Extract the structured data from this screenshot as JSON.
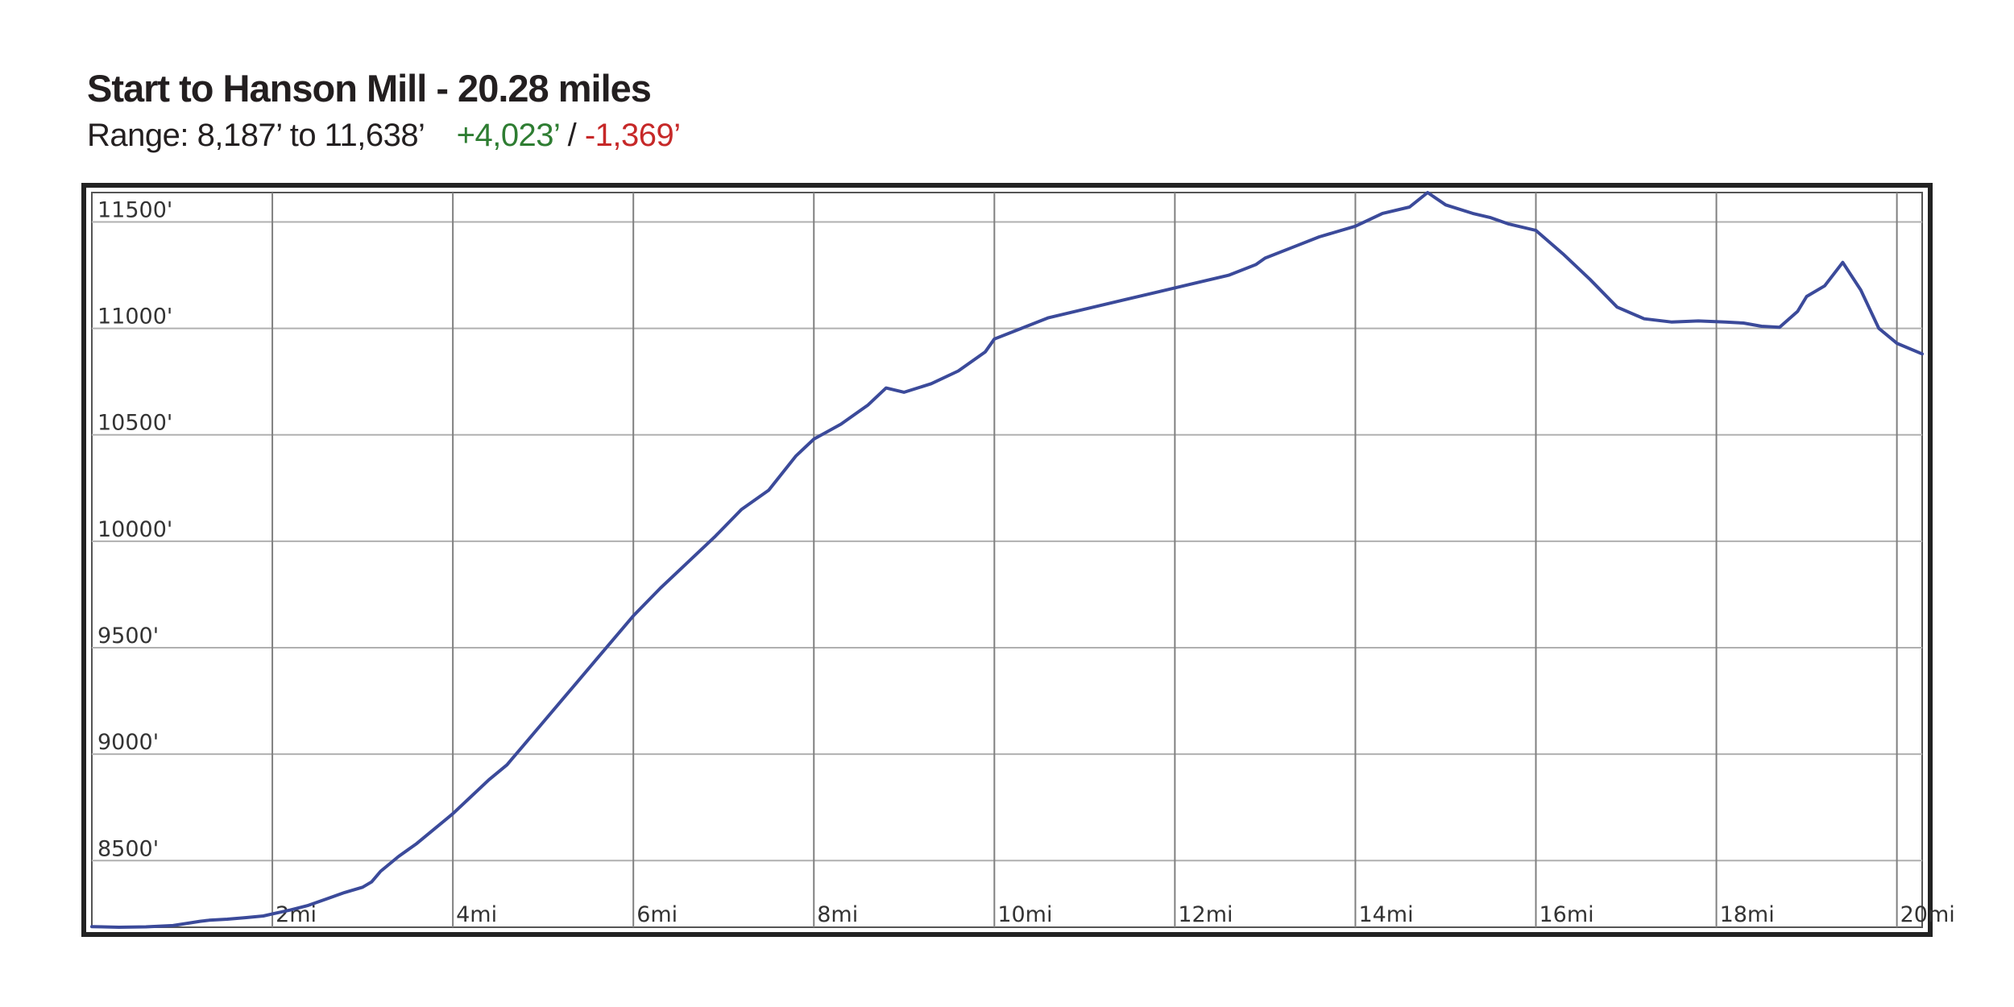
{
  "header": {
    "title": "Start to Hanson Mill - 20.28 miles",
    "range_label": "Range: 8,187’ to 11,638’",
    "gain": "+4,023’",
    "separator": "/",
    "loss": "-1,369’"
  },
  "colors": {
    "line": "#3b4a9a",
    "gain": "#2e7d32",
    "loss": "#c62828",
    "grid": "#b0b0b0",
    "frame": "#222222"
  },
  "chart_data": {
    "type": "line",
    "title": "Start to Hanson Mill - 20.28 miles",
    "xlabel": "",
    "ylabel": "",
    "xlim": [
      0,
      20.28
    ],
    "ylim": [
      8187,
      11638
    ],
    "grid": true,
    "x_ticks": [
      2,
      4,
      6,
      8,
      10,
      12,
      14,
      16,
      18,
      20
    ],
    "x_tick_labels": [
      "2mi",
      "4mi",
      "6mi",
      "8mi",
      "10mi",
      "12mi",
      "14mi",
      "16mi",
      "18mi",
      "20mi"
    ],
    "y_ticks": [
      11500,
      11000,
      10500,
      10000,
      9500,
      9000,
      8500
    ],
    "y_tick_labels": [
      "11500'",
      "11000'",
      "10500'",
      "10000'",
      "9500'",
      "9000'",
      "8500'"
    ],
    "series": [
      {
        "x": [
          0,
          0.3,
          0.6,
          0.9,
          1.2,
          1.3,
          1.5,
          1.7,
          1.9,
          2.0,
          2.2,
          2.4,
          2.6,
          2.8,
          3.0,
          3.1,
          3.2,
          3.4,
          3.6,
          3.8,
          4.0,
          4.2,
          4.4,
          4.6,
          4.8,
          5.0,
          5.2,
          5.4,
          5.6,
          5.8,
          6.0,
          6.3,
          6.6,
          6.9,
          7.2,
          7.5,
          7.8,
          8.0,
          8.3,
          8.6,
          8.8,
          9.0,
          9.3,
          9.6,
          9.9,
          10.0,
          10.3,
          10.6,
          11.0,
          11.4,
          11.8,
          12.2,
          12.6,
          12.9,
          13.0,
          13.3,
          13.6,
          14.0,
          14.3,
          14.6,
          14.8,
          15.0,
          15.3,
          15.5,
          15.7,
          16.0,
          16.3,
          16.6,
          16.9,
          17.2,
          17.5,
          17.8,
          18.1,
          18.3,
          18.5,
          18.7,
          18.9,
          19.0,
          19.2,
          19.4,
          19.6,
          19.8,
          20.0,
          20.28
        ],
        "y": [
          8190,
          8187,
          8189,
          8195,
          8215,
          8220,
          8225,
          8232,
          8240,
          8250,
          8268,
          8290,
          8320,
          8350,
          8375,
          8400,
          8450,
          8520,
          8580,
          8650,
          8720,
          8800,
          8880,
          8950,
          9050,
          9150,
          9250,
          9350,
          9450,
          9550,
          9650,
          9780,
          9900,
          10020,
          10150,
          10240,
          10400,
          10480,
          10550,
          10640,
          10720,
          10700,
          10740,
          10800,
          10890,
          10950,
          11000,
          11050,
          11090,
          11130,
          11170,
          11210,
          11250,
          11300,
          11330,
          11380,
          11430,
          11480,
          11540,
          11570,
          11638,
          11580,
          11540,
          11520,
          11490,
          11460,
          11350,
          11230,
          11100,
          11045,
          11030,
          11035,
          11030,
          11025,
          11010,
          11005,
          11080,
          11150,
          11200,
          11310,
          11180,
          11000,
          10930,
          10880
        ]
      }
    ]
  }
}
